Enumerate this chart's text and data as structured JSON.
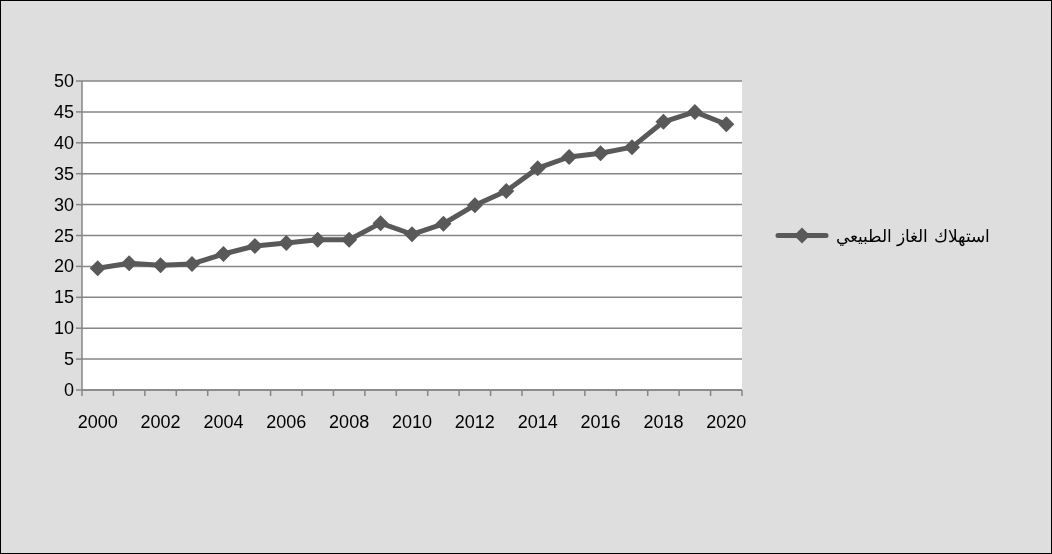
{
  "chart_data": {
    "type": "line",
    "categories": [
      "2000",
      null,
      "2002",
      null,
      "2004",
      null,
      "2006",
      null,
      "2008",
      null,
      "2010",
      null,
      "2012",
      null,
      "2014",
      null,
      "2016",
      null,
      "2018",
      null,
      "2020"
    ],
    "series": [
      {
        "name": "استهلاك الغاز الطبيعي",
        "color": "#595959",
        "values": [
          19.7,
          20.5,
          20.2,
          20.4,
          22.0,
          23.3,
          23.8,
          24.3,
          24.3,
          27.0,
          25.2,
          26.9,
          29.9,
          32.2,
          35.9,
          37.7,
          38.3,
          39.3,
          43.4,
          45.0,
          43.0
        ]
      }
    ],
    "ylim": [
      0,
      50
    ],
    "yticks": [
      0,
      5,
      10,
      15,
      20,
      25,
      30,
      35,
      40,
      45,
      50
    ],
    "grid": "y",
    "legend": "right",
    "marker": "diamond",
    "line_style": "solid"
  }
}
